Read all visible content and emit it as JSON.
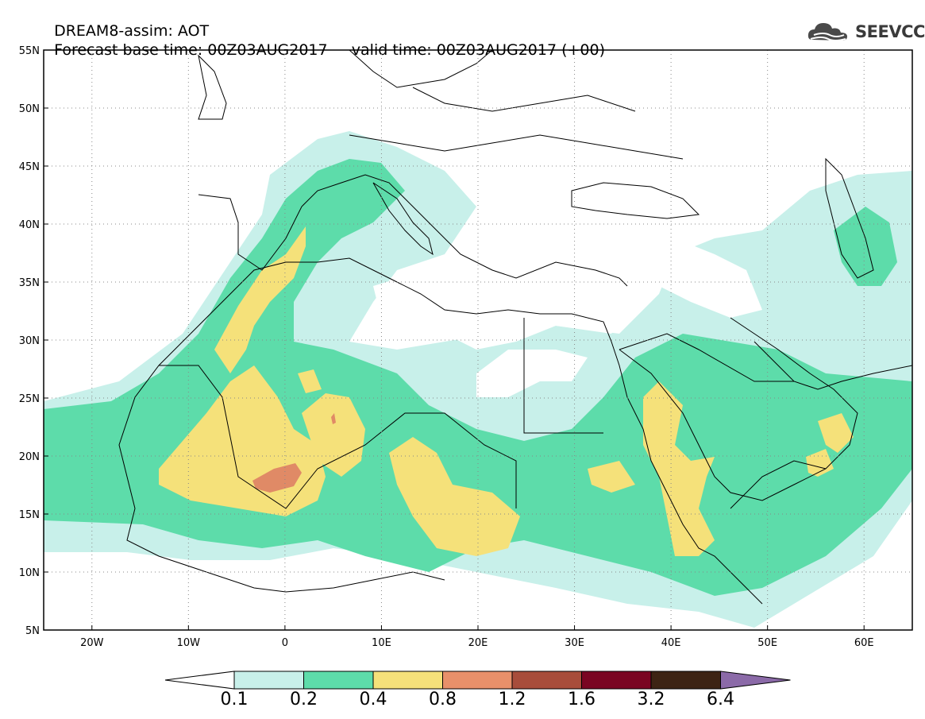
{
  "header": {
    "model_title": "DREAM8-assim: AOT",
    "base_time_label": "Forecast base time: 00Z03AUG2017",
    "valid_time_label": "valid time: 00Z03AUG2017 (+00)"
  },
  "logo": {
    "text": "SEEVCCC",
    "icon": "cloud-icon"
  },
  "map": {
    "lon_range": [
      -25,
      65
    ],
    "lat_range": [
      5,
      55
    ],
    "lat_ticks": [
      {
        "value": 55,
        "label": "55N"
      },
      {
        "value": 50,
        "label": "50N"
      },
      {
        "value": 45,
        "label": "45N"
      },
      {
        "value": 40,
        "label": "40N"
      },
      {
        "value": 35,
        "label": "35N"
      },
      {
        "value": 30,
        "label": "30N"
      },
      {
        "value": 25,
        "label": "25N"
      },
      {
        "value": 20,
        "label": "20N"
      },
      {
        "value": 15,
        "label": "15N"
      },
      {
        "value": 10,
        "label": "10N"
      },
      {
        "value": 5,
        "label": "5N"
      }
    ],
    "lon_ticks": [
      {
        "value": -20,
        "label": "20W"
      },
      {
        "value": -10,
        "label": "10W"
      },
      {
        "value": 0,
        "label": "0"
      },
      {
        "value": 10,
        "label": "10E"
      },
      {
        "value": 20,
        "label": "20E"
      },
      {
        "value": 30,
        "label": "30E"
      },
      {
        "value": 40,
        "label": "40E"
      },
      {
        "value": 50,
        "label": "50E"
      },
      {
        "value": 60,
        "label": "60E"
      }
    ],
    "grid": "dotted",
    "field_levels": [
      {
        "from": 0.1,
        "to": 0.2,
        "color": "#c8f0ea"
      },
      {
        "from": 0.2,
        "to": 0.4,
        "color": "#5ddcaa"
      },
      {
        "from": 0.4,
        "to": 0.8,
        "color": "#f5e17a"
      },
      {
        "from": 0.8,
        "to": 1.2,
        "color": "#e08a66"
      }
    ]
  },
  "colorbar": {
    "labels": [
      "0.1",
      "0.2",
      "0.4",
      "0.8",
      "1.2",
      "1.6",
      "3.2",
      "6.4"
    ],
    "under_color": "#ffffff",
    "colors": [
      "#c8f0ea",
      "#5ddcaa",
      "#f5e17a",
      "#e8906a",
      "#a84d3b",
      "#7a0522",
      "#3d2414"
    ],
    "over_color": "#8b6aa8"
  }
}
